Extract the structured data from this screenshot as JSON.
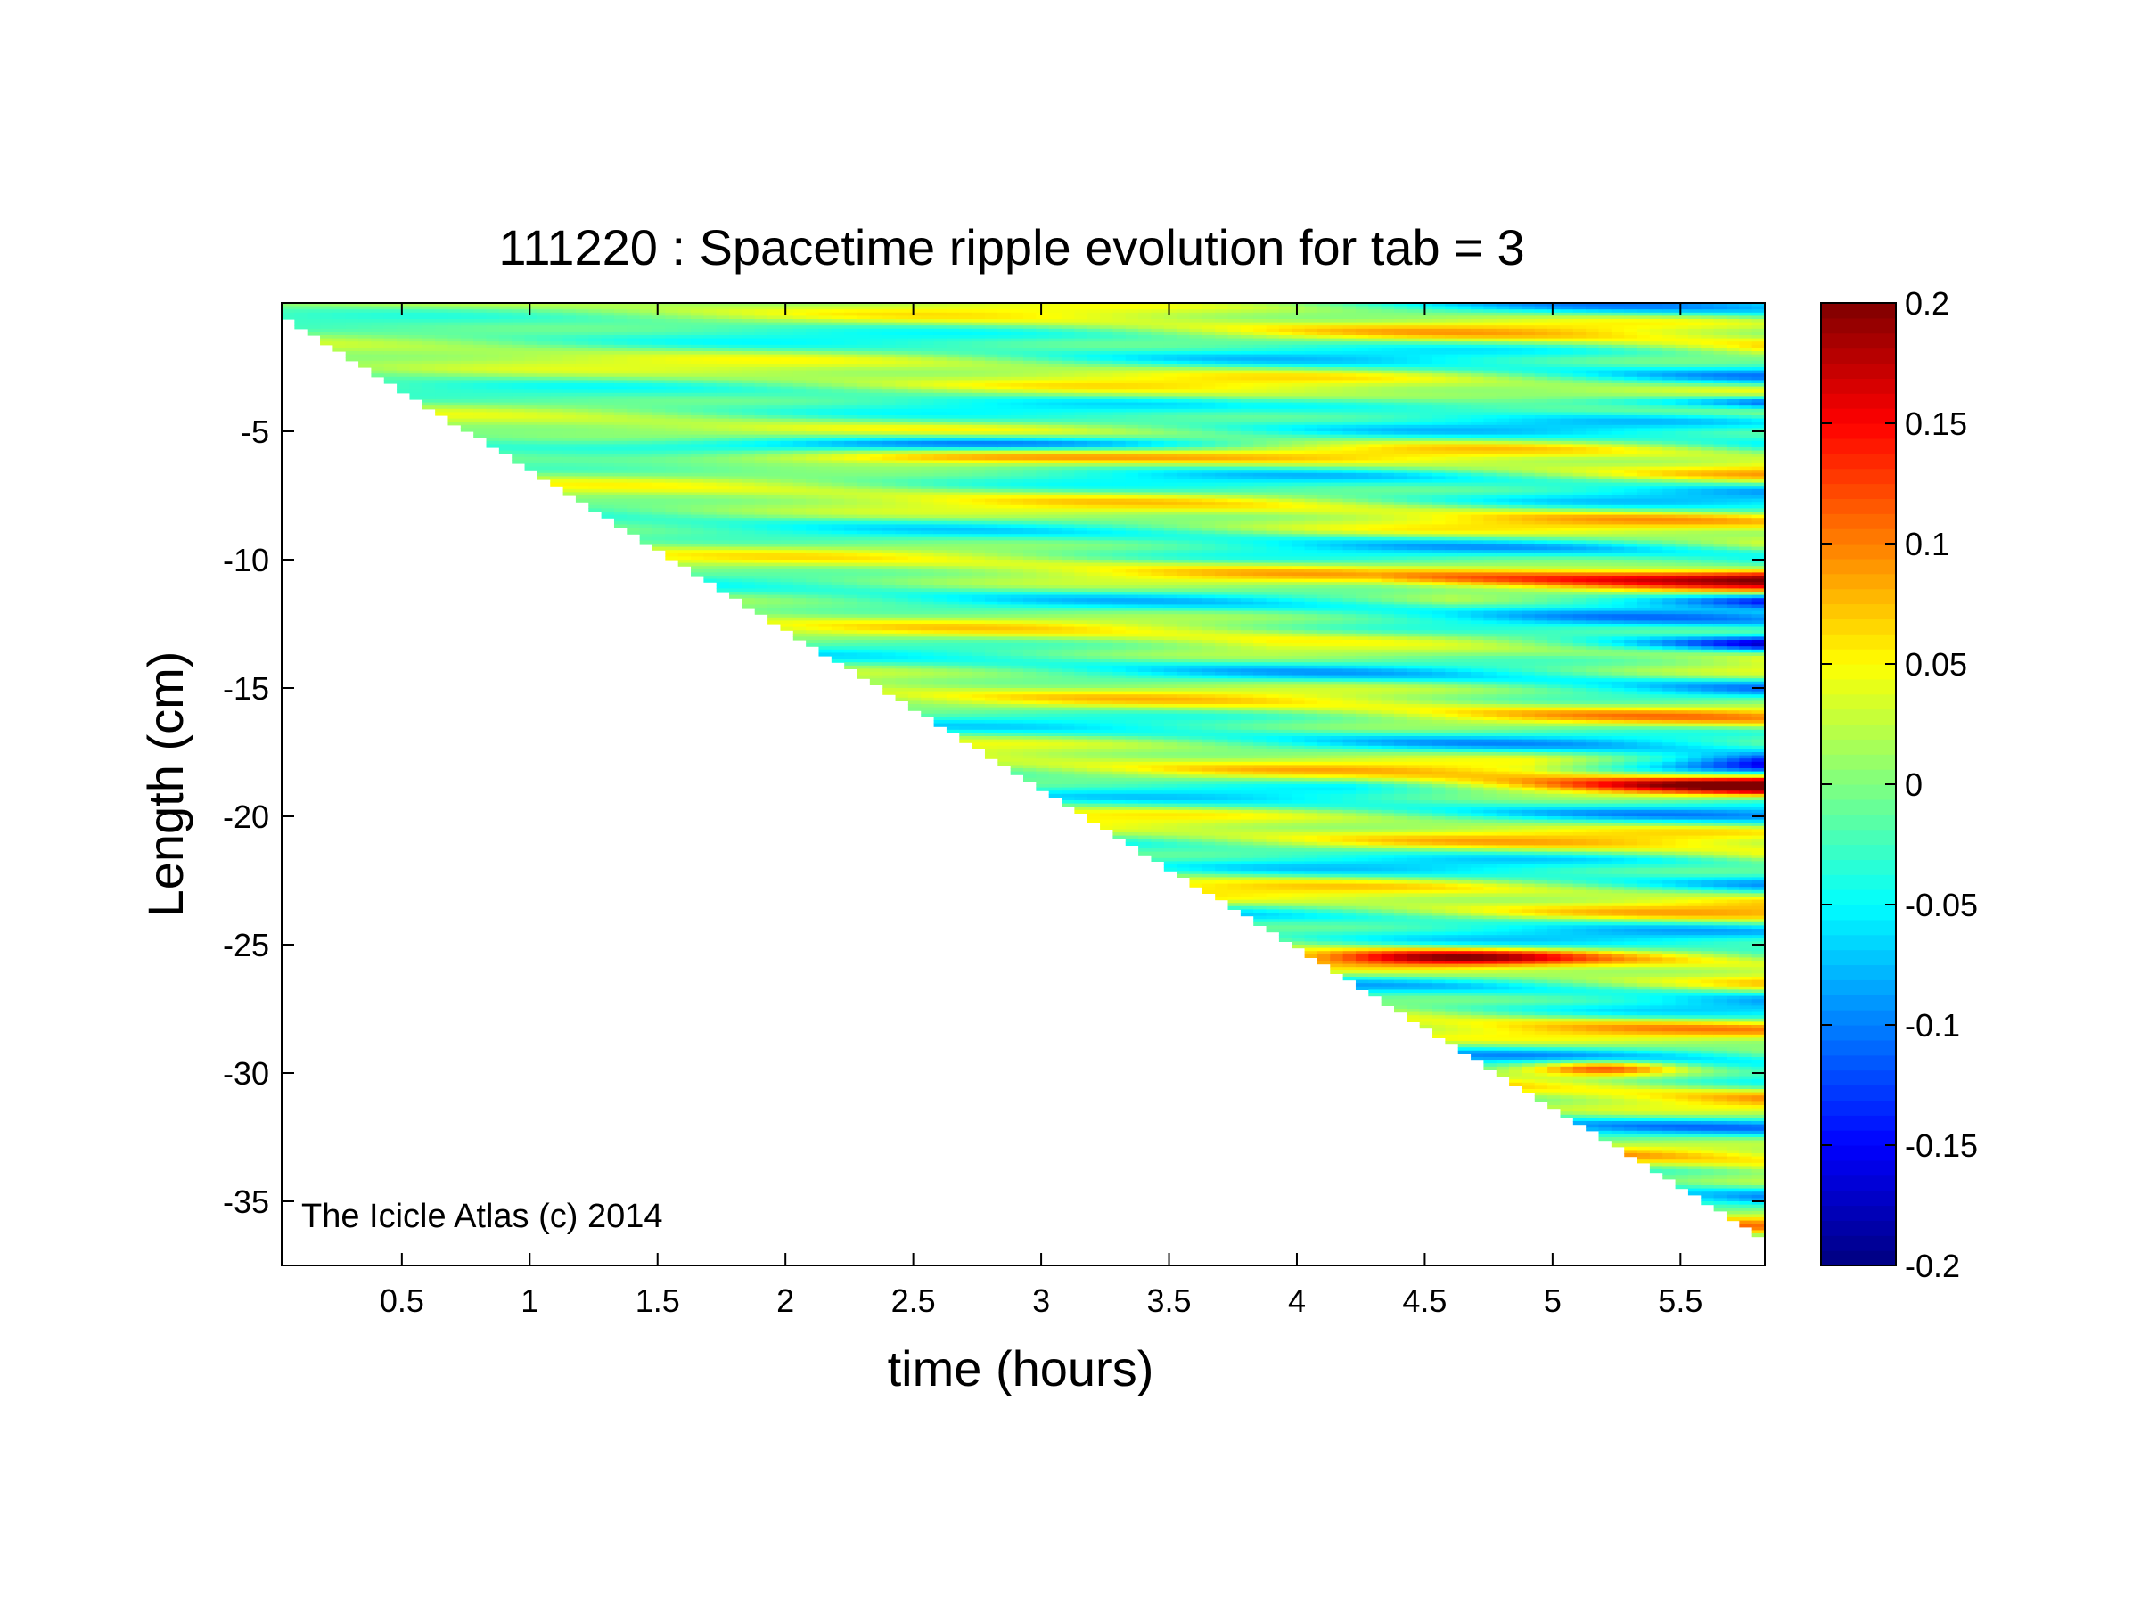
{
  "chart_data": {
    "type": "heatmap",
    "title": "111220 : Spacetime ripple evolution for tab = 3",
    "xlabel": "time (hours)",
    "ylabel": "Length (cm)",
    "xlim": [
      0.03,
      5.83
    ],
    "ylim": [
      -37.5,
      0
    ],
    "x_ticks": [
      0.5,
      1,
      1.5,
      2,
      2.5,
      3,
      3.5,
      4,
      4.5,
      5,
      5.5
    ],
    "x_tick_labels": [
      "0.5",
      "1",
      "1.5",
      "2",
      "2.5",
      "3",
      "3.5",
      "4",
      "4.5",
      "5",
      "5.5"
    ],
    "y_ticks": [
      -5,
      -10,
      -15,
      -20,
      -25,
      -30,
      -35
    ],
    "y_tick_labels": [
      "-5",
      "-10",
      "-15",
      "-20",
      "-25",
      "-30",
      "-35"
    ],
    "colorbar": {
      "colormap": "jet",
      "clim": [
        -0.2,
        0.2
      ],
      "ticks": [
        0.2,
        0.15,
        0.1,
        0.05,
        0,
        -0.05,
        -0.1,
        -0.15,
        -0.2
      ],
      "tick_labels": [
        "0.2",
        "0.15",
        "0.1",
        "0.05",
        "0",
        "-0.05",
        "-0.1",
        "-0.15",
        "-0.2"
      ]
    },
    "data_boundary": {
      "description_points": [
        [
          0.03,
          -0.5
        ],
        [
          5.83,
          -36.5
        ]
      ]
    },
    "grid": false,
    "annotation": "The Icicle Atlas (c) 2014"
  }
}
